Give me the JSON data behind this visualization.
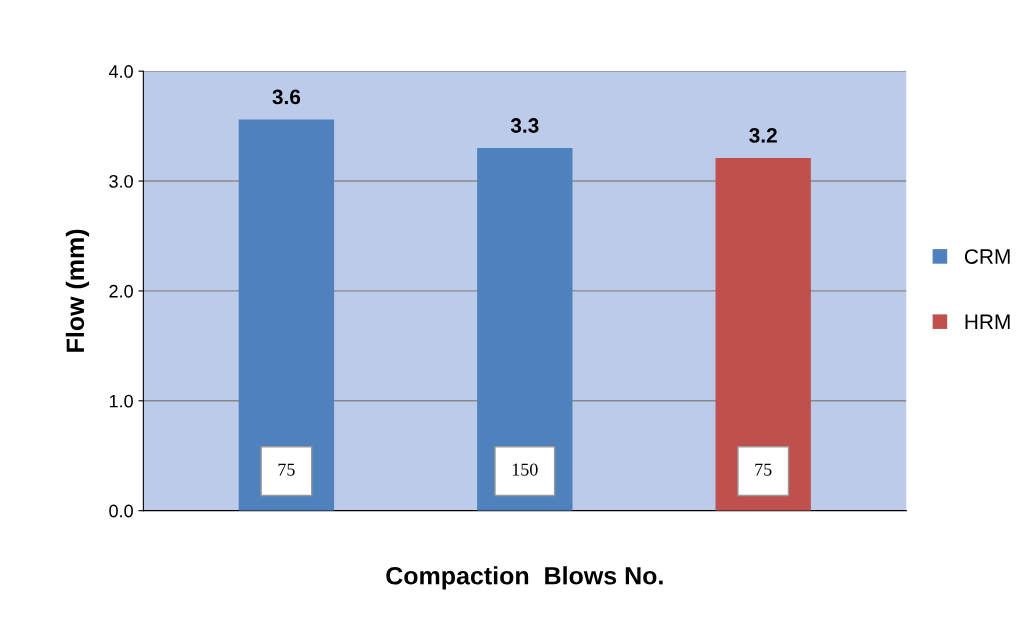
{
  "chart_data": {
    "type": "bar",
    "xlabel": "Compaction  Blows No.",
    "ylabel": "Flow (mm)",
    "categories": [
      "75",
      "150",
      "75"
    ],
    "series": [
      {
        "name": "CRM",
        "color": "#4f81bd",
        "values": [
          3.56,
          3.3,
          null
        ],
        "value_labels": [
          "3.6",
          "3.3",
          null
        ]
      },
      {
        "name": "HRM",
        "color": "#c0504d",
        "values": [
          null,
          null,
          3.21
        ],
        "value_labels": [
          null,
          null,
          "3.2"
        ]
      }
    ],
    "ylim": [
      0,
      4
    ],
    "yticks": [
      {
        "value": 0,
        "label": "0.0"
      },
      {
        "value": 1,
        "label": "1.0"
      },
      {
        "value": 2,
        "label": "2.0"
      },
      {
        "value": 3,
        "label": "3.0"
      },
      {
        "value": 4,
        "label": "4.0"
      }
    ],
    "grid": "y",
    "legend": "right"
  }
}
